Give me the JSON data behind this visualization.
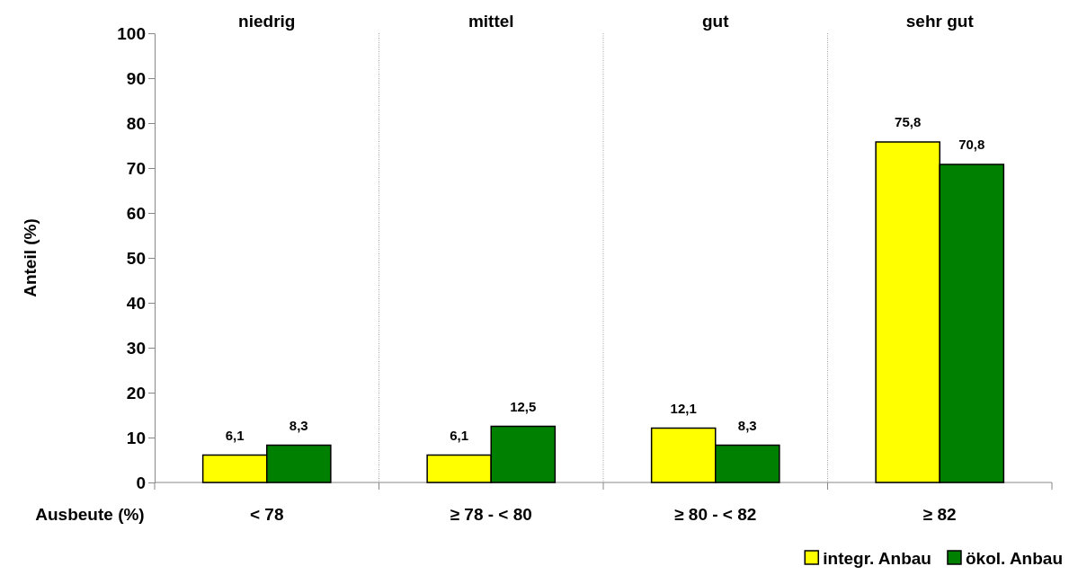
{
  "chart_data": {
    "type": "bar",
    "xlabel": "Ausbeute (%)",
    "ylabel": "Anteil (%)",
    "categories": [
      "< 78",
      "≥ 78 - < 80",
      "≥ 80 - < 82",
      "≥ 82"
    ],
    "series": [
      {
        "name": "integr. Anbau",
        "color": "#ffff00",
        "values": [
          6.1,
          6.1,
          12.1,
          75.8
        ],
        "value_labels": [
          "6,1",
          "6,1",
          "12,1",
          "75,8"
        ]
      },
      {
        "name": "ökol. Anbau",
        "color": "#008000",
        "values": [
          8.3,
          12.5,
          8.3,
          70.8
        ],
        "value_labels": [
          "8,3",
          "12,5",
          "8,3",
          "70,8"
        ]
      }
    ],
    "ylim": [
      0,
      100
    ],
    "yticks": [
      0,
      10,
      20,
      30,
      40,
      50,
      60,
      70,
      80,
      90,
      100
    ],
    "grid": "x",
    "legend": "bottom right",
    "annotations": [
      "niedrig",
      "mittel",
      "gut",
      "sehr gut"
    ]
  }
}
